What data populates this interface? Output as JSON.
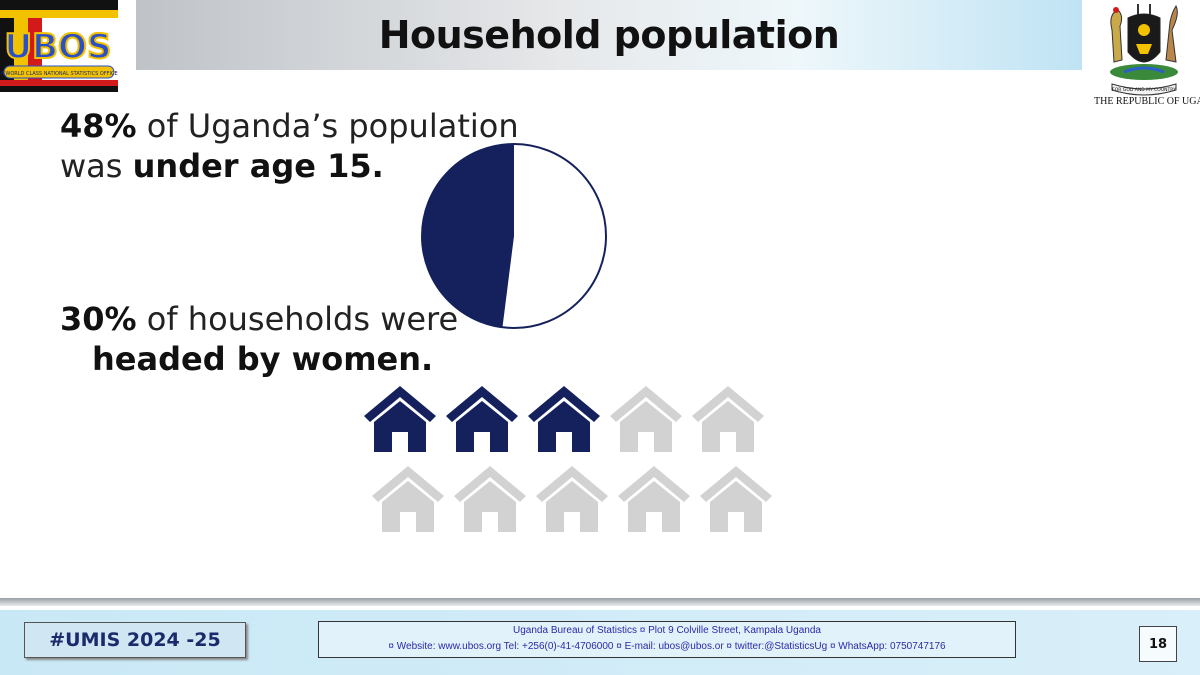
{
  "header": {
    "title": "Household population",
    "logo_text": "UBOS",
    "logo_motto": "A WORLD CLASS NATIONAL STATISTICS OFFICE",
    "republic_text": "THE REPUBLIC OF UGANDA",
    "coat_motto": "FOR GOD AND MY COUNTRY"
  },
  "stat_population": {
    "percent": "48%",
    "text_rest": " of Uganda’s population",
    "line2_prefix": "was ",
    "line2_bold": "under age 15."
  },
  "stat_households": {
    "percent": "30%",
    "text_rest": " of households were",
    "line2_bold": "headed by women."
  },
  "colors": {
    "accent_navy": "#15215c",
    "house_grey": "#d2d2d2"
  },
  "chart_data": [
    {
      "type": "pie",
      "values": [
        48,
        52
      ],
      "slice_colors": [
        "#15215c",
        "#ffffff"
      ]
    },
    {
      "type": "pictogram",
      "total": 10,
      "filled": 3,
      "icon": "house-icon"
    }
  ],
  "footer": {
    "tag": "#UMIS 2024 -25",
    "address_line1": "Uganda Bureau of Statistics ¤ Plot 9 Colville Street, Kampala Uganda",
    "address_line2": "¤ Website: www.ubos.org Tel: +256(0)-41-4706000 ¤ E-mail: ubos@ubos.or ¤ twitter:@StatisticsUg ¤ WhatsApp: 0750747176",
    "page_number": "18"
  }
}
